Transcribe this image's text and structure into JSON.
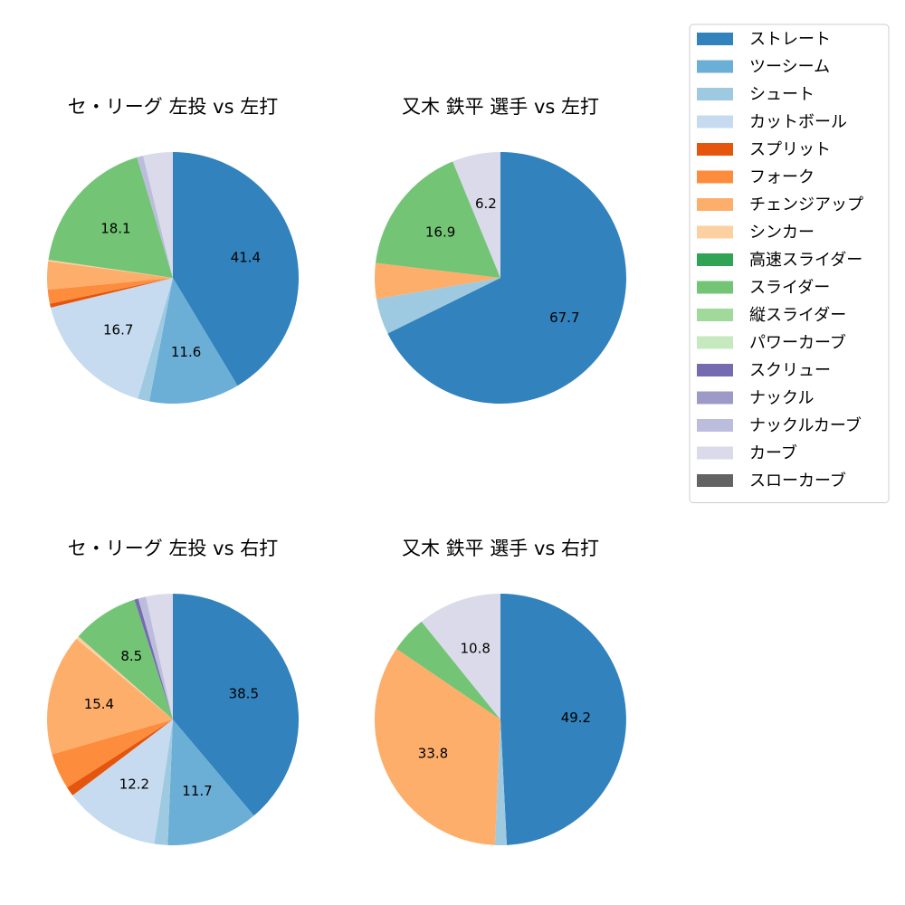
{
  "legend": {
    "items": [
      {
        "label": "ストレート",
        "color": "#3182bd"
      },
      {
        "label": "ツーシーム",
        "color": "#6baed6"
      },
      {
        "label": "シュート",
        "color": "#9ecae1"
      },
      {
        "label": "カットボール",
        "color": "#c6dbef"
      },
      {
        "label": "スプリット",
        "color": "#e6550d"
      },
      {
        "label": "フォーク",
        "color": "#fd8d3c"
      },
      {
        "label": "チェンジアップ",
        "color": "#fdae6b"
      },
      {
        "label": "シンカー",
        "color": "#fdd0a2"
      },
      {
        "label": "高速スライダー",
        "color": "#31a354"
      },
      {
        "label": "スライダー",
        "color": "#74c476"
      },
      {
        "label": "縦スライダー",
        "color": "#a1d99b"
      },
      {
        "label": "パワーカーブ",
        "color": "#c7e9c0"
      },
      {
        "label": "スクリュー",
        "color": "#756bb1"
      },
      {
        "label": "ナックル",
        "color": "#9e9ac8"
      },
      {
        "label": "ナックルカーブ",
        "color": "#bcbddc"
      },
      {
        "label": "カーブ",
        "color": "#dadaeb"
      },
      {
        "label": "スローカーブ",
        "color": "#636363"
      }
    ]
  },
  "chart_data": [
    {
      "type": "pie",
      "title": "セ・リーグ 左投 vs 左打",
      "slices": [
        {
          "label": "ストレート",
          "value": 41.4,
          "text": "41.4"
        },
        {
          "label": "ツーシーム",
          "value": 11.6,
          "text": "11.6"
        },
        {
          "label": "シュート",
          "value": 1.5,
          "text": ""
        },
        {
          "label": "カットボール",
          "value": 16.7,
          "text": "16.7"
        },
        {
          "label": "スプリット",
          "value": 0.5,
          "text": ""
        },
        {
          "label": "フォーク",
          "value": 1.8,
          "text": ""
        },
        {
          "label": "チェンジアップ",
          "value": 3.6,
          "text": ""
        },
        {
          "label": "シンカー",
          "value": 0.2,
          "text": ""
        },
        {
          "label": "スライダー",
          "value": 18.1,
          "text": "18.1"
        },
        {
          "label": "ナックルカーブ",
          "value": 0.8,
          "text": ""
        },
        {
          "label": "カーブ",
          "value": 3.8,
          "text": ""
        }
      ]
    },
    {
      "type": "pie",
      "title": "又木 鉄平 選手 vs 左打",
      "slices": [
        {
          "label": "ストレート",
          "value": 67.7,
          "text": "67.7"
        },
        {
          "label": "シュート",
          "value": 4.6,
          "text": ""
        },
        {
          "label": "チェンジアップ",
          "value": 4.6,
          "text": ""
        },
        {
          "label": "スライダー",
          "value": 16.9,
          "text": "16.9"
        },
        {
          "label": "カーブ",
          "value": 6.2,
          "text": "6.2"
        }
      ]
    },
    {
      "type": "pie",
      "title": "セ・リーグ 左投 vs 右打",
      "slices": [
        {
          "label": "ストレート",
          "value": 38.5,
          "text": "38.5"
        },
        {
          "label": "ツーシーム",
          "value": 11.7,
          "text": "11.7"
        },
        {
          "label": "シュート",
          "value": 1.7,
          "text": ""
        },
        {
          "label": "カットボール",
          "value": 12.2,
          "text": "12.2"
        },
        {
          "label": "スプリット",
          "value": 1.2,
          "text": ""
        },
        {
          "label": "フォーク",
          "value": 4.6,
          "text": ""
        },
        {
          "label": "チェンジアップ",
          "value": 15.4,
          "text": "15.4"
        },
        {
          "label": "シンカー",
          "value": 0.4,
          "text": ""
        },
        {
          "label": "スライダー",
          "value": 8.5,
          "text": "8.5"
        },
        {
          "label": "スクリュー",
          "value": 0.5,
          "text": ""
        },
        {
          "label": "ナックルカーブ",
          "value": 1.0,
          "text": ""
        },
        {
          "label": "カーブ",
          "value": 3.4,
          "text": ""
        }
      ]
    },
    {
      "type": "pie",
      "title": "又木 鉄平 選手 vs 右打",
      "slices": [
        {
          "label": "ストレート",
          "value": 49.2,
          "text": "49.2"
        },
        {
          "label": "シュート",
          "value": 1.5,
          "text": ""
        },
        {
          "label": "チェンジアップ",
          "value": 33.8,
          "text": "33.8"
        },
        {
          "label": "スライダー",
          "value": 4.7,
          "text": ""
        },
        {
          "label": "カーブ",
          "value": 10.8,
          "text": "10.8"
        }
      ]
    }
  ]
}
